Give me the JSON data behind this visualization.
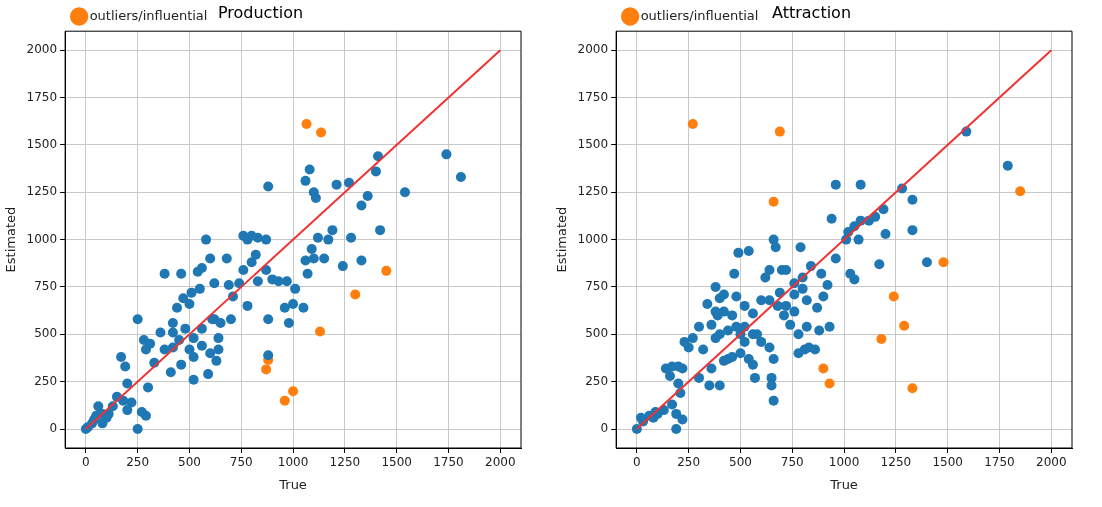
{
  "chart_data": [
    {
      "type": "scatter",
      "title": "Production",
      "xlabel": "True",
      "ylabel": "Estimated",
      "xlim": [
        -100,
        2100
      ],
      "ylim": [
        -100,
        2100
      ],
      "xticks": [
        0,
        250,
        500,
        750,
        1000,
        1250,
        1500,
        1750,
        2000
      ],
      "yticks": [
        0,
        250,
        500,
        750,
        1000,
        1250,
        1500,
        1750,
        2000
      ],
      "grid": true,
      "legend": "top left",
      "marker": "circle",
      "series": [
        {
          "color": "#1f77b4",
          "x": [
            1740,
            1810,
            1410,
            1400,
            1360,
            1540,
            1270,
            1210,
            1330,
            1080,
            1060,
            1100,
            1110,
            880,
            1190,
            1240,
            1280,
            1420,
            1330,
            1170,
            1120,
            1090,
            1100,
            1060,
            1150,
            970,
            1070,
            1010,
            820,
            870,
            830,
            800,
            760,
            780,
            870,
            900,
            930,
            800,
            760,
            830,
            880,
            960,
            1000,
            1050,
            980,
            880,
            780,
            740,
            690,
            710,
            700,
            620,
            650,
            580,
            600,
            560,
            540,
            620,
            680,
            550,
            510,
            470,
            500,
            440,
            420,
            460,
            380,
            360,
            420,
            480,
            520,
            560,
            610,
            560,
            600,
            500,
            520,
            450,
            420,
            380,
            460,
            410,
            520,
            590,
            630,
            640,
            640,
            310,
            290,
            280,
            330,
            300,
            250,
            270,
            290,
            250,
            170,
            190,
            200,
            180,
            150,
            130,
            60,
            40,
            80,
            10,
            30,
            0,
            100,
            110,
            200,
            220,
            80,
            50
          ],
          "values": [
            1450,
            1330,
            1440,
            1360,
            1230,
            1250,
            1300,
            1290,
            1180,
            1370,
            1310,
            1250,
            1220,
            1280,
            1050,
            860,
            1010,
            1050,
            890,
            1000,
            1010,
            950,
            900,
            890,
            900,
            780,
            820,
            740,
            920,
            840,
            1010,
            1020,
            1020,
            1000,
            1000,
            790,
            780,
            880,
            840,
            780,
            580,
            640,
            660,
            640,
            560,
            390,
            650,
            770,
            760,
            700,
            580,
            580,
            560,
            1000,
            900,
            850,
            830,
            770,
            900,
            740,
            720,
            690,
            660,
            640,
            560,
            820,
            820,
            510,
            510,
            530,
            480,
            530,
            580,
            440,
            400,
            420,
            380,
            470,
            430,
            420,
            340,
            300,
            260,
            290,
            360,
            420,
            480,
            450,
            420,
            470,
            350,
            220,
            580,
            90,
            70,
            0,
            380,
            330,
            240,
            150,
            170,
            120,
            120,
            50,
            80,
            10,
            30,
            0,
            60,
            80,
            100,
            140,
            30,
            70
          ]
        },
        {
          "name": "outliers/influential",
          "color": "#ff7f0e",
          "x": [
            1065,
            1135,
            1450,
            1300,
            1130,
            880,
            870,
            1000,
            960
          ],
          "values": [
            1610,
            1565,
            835,
            710,
            515,
            365,
            315,
            200,
            150
          ]
        },
        {
          "type": "line",
          "marker": "none",
          "color": "#f03232",
          "x": [
            0,
            2000
          ],
          "values": [
            0,
            2000
          ]
        }
      ]
    },
    {
      "type": "scatter",
      "title": "Attraction",
      "xlabel": "True",
      "ylabel": "Estimated",
      "xlim": [
        -100,
        2100
      ],
      "ylim": [
        -100,
        2100
      ],
      "xticks": [
        0,
        250,
        500,
        750,
        1000,
        1250,
        1500,
        1750,
        2000
      ],
      "yticks": [
        0,
        250,
        500,
        750,
        1000,
        1250,
        1500,
        1750,
        2000
      ],
      "grid": true,
      "legend": "top left",
      "marker": "circle",
      "series": [
        {
          "color": "#1f77b4",
          "x": [
            1590,
            1790,
            1280,
            1330,
            1080,
            960,
            1400,
            1330,
            1190,
            1150,
            1120,
            1080,
            1050,
            1020,
            1070,
            1010,
            1200,
            1170,
            940,
            960,
            1030,
            1050,
            920,
            890,
            790,
            840,
            800,
            720,
            700,
            660,
            670,
            640,
            620,
            540,
            490,
            470,
            420,
            390,
            380,
            480,
            520,
            560,
            600,
            560,
            520,
            500,
            480,
            440,
            400,
            360,
            300,
            270,
            320,
            250,
            230,
            220,
            200,
            170,
            140,
            160,
            200,
            210,
            170,
            190,
            220,
            190,
            130,
            100,
            80,
            60,
            30,
            0,
            20,
            90,
            300,
            360,
            420,
            350,
            400,
            440,
            460,
            380,
            640,
            660,
            650,
            650,
            660,
            780,
            740,
            830,
            810,
            860,
            880,
            780,
            820,
            930,
            760,
            710,
            760,
            680,
            640,
            690,
            720,
            580,
            600,
            520,
            500,
            540,
            560,
            570,
            460,
            420,
            380,
            340,
            400,
            820,
            870,
            900,
            800,
            760
          ],
          "values": [
            1570,
            1390,
            1270,
            1210,
            1290,
            1290,
            880,
            1050,
            1160,
            1120,
            1100,
            1100,
            1070,
            1040,
            1000,
            1000,
            1030,
            870,
            1110,
            900,
            820,
            790,
            760,
            820,
            960,
            860,
            800,
            840,
            840,
            1000,
            960,
            840,
            800,
            940,
            930,
            820,
            710,
            600,
            750,
            700,
            650,
            610,
            680,
            500,
            540,
            500,
            540,
            520,
            500,
            550,
            540,
            480,
            420,
            430,
            460,
            320,
            330,
            330,
            320,
            280,
            240,
            190,
            130,
            80,
            50,
            0,
            100,
            80,
            60,
            70,
            40,
            0,
            60,
            90,
            270,
            320,
            360,
            230,
            230,
            370,
            380,
            480,
            430,
            370,
            270,
            230,
            150,
            400,
            550,
            430,
            420,
            420,
            520,
            500,
            540,
            540,
            620,
            600,
            710,
            650,
            680,
            720,
            650,
            500,
            460,
            460,
            400,
            370,
            340,
            270,
            600,
            620,
            620,
            660,
            690,
            680,
            640,
            700,
            740,
            770
          ]
        },
        {
          "name": "outliers/influential",
          "color": "#ff7f0e",
          "x": [
            270,
            690,
            660,
            1850,
            1480,
            1240,
            1290,
            1180,
            900,
            930,
            1330
          ],
          "values": [
            1610,
            1570,
            1200,
            1255,
            880,
            700,
            545,
            475,
            320,
            240,
            215
          ]
        },
        {
          "type": "line",
          "marker": "none",
          "color": "#f03232",
          "x": [
            0,
            2000
          ],
          "values": [
            0,
            2000
          ]
        }
      ]
    }
  ]
}
